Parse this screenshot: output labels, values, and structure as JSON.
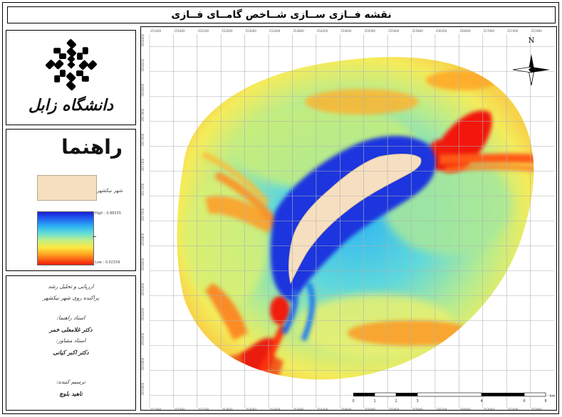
{
  "map_title": "نقشه فــازی ســازی شــاخص گامــای فــازی",
  "university": {
    "name": "دانشگاه زابل",
    "logo_icon": "zabol-university-emblem-icon"
  },
  "legend": {
    "title": "راهنما",
    "city_label": "شهر نیکشهر",
    "city_color": "#f6dfc0",
    "ramp_high": "High : 0.86535",
    "ramp_low": "Low : 0.02159",
    "ramp_colors": [
      "#1a1dd6",
      "#2fb6f2",
      "#c8f080",
      "#ffe640",
      "#ff9a1e",
      "#f01a0a"
    ]
  },
  "credits": {
    "line1": "ارزیابی و تحلیل رشد",
    "line2": "پراکنده روی شهر نیکشهر",
    "advisor_title": "استاد راهنما:",
    "advisor_name": "دکتر غلامعلی خمر",
    "consultant_title": "استاد مشاور:",
    "consultant_name": "دکتر اکبر کیانی",
    "author_title": "ترسیم کننده:",
    "author_name": "ناهید بلوچ"
  },
  "north_arrow": {
    "label": "N",
    "icon": "north-arrow-compass-icon"
  },
  "scale_bar": {
    "ticks": [
      "0",
      "1",
      "2",
      "3",
      "4",
      "6",
      "8"
    ],
    "unit": "km"
  },
  "grid": {
    "top_labels": [
      "251400",
      "251800",
      "252200",
      "252600",
      "253000",
      "253400",
      "253800",
      "254200",
      "254600",
      "255000",
      "255400",
      "255800",
      "256200",
      "256600",
      "257000",
      "257400",
      "257800"
    ],
    "left_labels": [
      "2918400",
      "2918200",
      "2918000",
      "2917800",
      "2917600",
      "2917400",
      "2917200",
      "2917000",
      "2916800",
      "2916600",
      "2916400",
      "2916200",
      "2916000",
      "2915800",
      "2915600"
    ]
  }
}
